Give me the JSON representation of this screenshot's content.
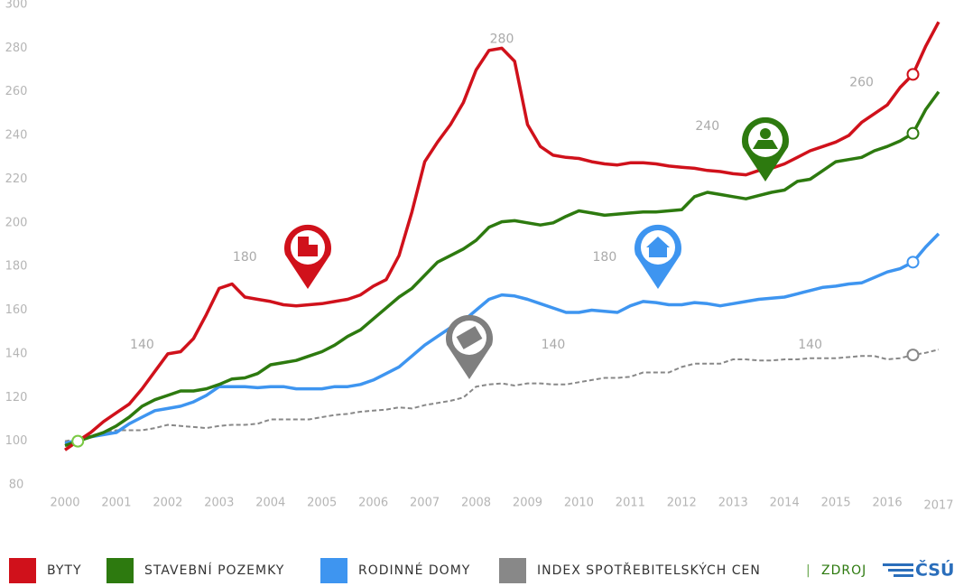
{
  "chart_data": {
    "type": "line",
    "x": [
      2000,
      2000.25,
      2000.5,
      2000.75,
      2001,
      2001.25,
      2001.5,
      2001.75,
      2002,
      2002.25,
      2002.5,
      2002.75,
      2003,
      2003.25,
      2003.5,
      2003.75,
      2004,
      2004.25,
      2004.5,
      2004.75,
      2005,
      2005.25,
      2005.5,
      2005.75,
      2006,
      2006.25,
      2006.5,
      2006.75,
      2007,
      2007.25,
      2007.5,
      2007.75,
      2008,
      2008.25,
      2008.5,
      2008.75,
      2009,
      2009.25,
      2009.5,
      2009.75,
      2010,
      2010.25,
      2010.5,
      2010.75,
      2011,
      2011.25,
      2011.5,
      2011.75,
      2012,
      2012.25,
      2012.5,
      2012.75,
      2013,
      2013.25,
      2013.5,
      2013.75,
      2014,
      2014.25,
      2014.5,
      2014.75,
      2015,
      2015.25,
      2015.5,
      2015.75,
      2016,
      2016.25,
      2016.5,
      2016.75,
      2017
    ],
    "series": [
      {
        "name": "BYTY",
        "color": "#d0111b",
        "dashed": false,
        "values": [
          96,
          100,
          104,
          109,
          113,
          117,
          124,
          132,
          140,
          141,
          147,
          158,
          170,
          172,
          166,
          165,
          164,
          162.5,
          162,
          162.5,
          163,
          164,
          165,
          167,
          171,
          174,
          185,
          205,
          228,
          237,
          245,
          255,
          270,
          279,
          280,
          274,
          245,
          235,
          231,
          230,
          229.5,
          228,
          227,
          226.5,
          227.5,
          227.5,
          227,
          226,
          225.5,
          225,
          224,
          223.5,
          222.5,
          222,
          224,
          225,
          227,
          230,
          233,
          235,
          237,
          240,
          246,
          250,
          254,
          262,
          268,
          281,
          292
        ]
      },
      {
        "name": "STAVEBNÍ POZEMKY",
        "color": "#2d7a0f",
        "dashed": false,
        "values": [
          98,
          100,
          102,
          104,
          107,
          111,
          116,
          119,
          121,
          123,
          123,
          124,
          126,
          128.5,
          129,
          131,
          135,
          136,
          137,
          139,
          141,
          144,
          148,
          151,
          156,
          161,
          166,
          170,
          176,
          182,
          185,
          188,
          192,
          198,
          200.5,
          201,
          200,
          199,
          200,
          203,
          205.5,
          204.5,
          203.5,
          204,
          204.5,
          205,
          205,
          205.5,
          206,
          212,
          214,
          213,
          212,
          211,
          212.5,
          214,
          215,
          219,
          220,
          224,
          228,
          229,
          230,
          233,
          235,
          237.5,
          241,
          252,
          260
        ]
      },
      {
        "name": "RODINNÉ DOMY",
        "color": "#3e95f0",
        "dashed": false,
        "values": [
          99,
          100.5,
          102,
          103,
          104,
          108,
          111,
          114,
          115,
          116,
          118,
          121,
          125,
          125,
          125,
          124.5,
          125,
          125,
          124,
          124,
          124,
          125,
          125,
          126,
          128,
          131,
          134,
          139,
          144,
          148,
          152,
          155,
          160,
          165,
          167,
          166.5,
          165,
          163,
          161,
          159,
          159,
          160,
          159.5,
          159,
          162,
          164,
          163.5,
          162.5,
          162.5,
          163.5,
          163,
          162,
          163,
          164,
          165,
          165.5,
          166,
          167.5,
          169,
          170.5,
          171,
          172,
          172.5,
          175,
          177.5,
          179,
          182,
          189,
          195
        ]
      },
      {
        "name": "INDEX SPOTŘEBITELSKÝCH CEN",
        "color": "#888888",
        "dashed": true,
        "values": [
          100,
          101,
          102.5,
          104,
          105,
          105,
          105,
          106,
          107.5,
          107,
          106.5,
          106,
          107,
          107.5,
          107.5,
          108,
          110,
          110,
          110,
          110,
          111,
          112,
          112.5,
          113.5,
          114,
          114.5,
          115.5,
          115,
          116.5,
          117.5,
          118.5,
          120,
          125,
          126,
          126.5,
          125.5,
          126.5,
          126.5,
          126,
          126,
          127,
          128,
          129,
          129,
          129.5,
          131.5,
          131.5,
          131.5,
          134,
          135.5,
          135.5,
          135.5,
          137.5,
          137.5,
          137,
          137,
          137.5,
          137.5,
          138,
          138,
          138,
          138.5,
          139,
          139,
          137.5,
          138,
          139.5,
          140.5,
          142
        ]
      }
    ],
    "xlim": [
      2000,
      2017
    ],
    "xticks": [
      2000,
      2001,
      2002,
      2003,
      2004,
      2005,
      2006,
      2007,
      2008,
      2009,
      2010,
      2011,
      2012,
      2013,
      2014,
      2015,
      2016,
      2017
    ],
    "ylim": [
      80,
      300
    ],
    "yticks": [
      80,
      100,
      120,
      140,
      160,
      180,
      200,
      220,
      240,
      260,
      280,
      300
    ],
    "grid": false,
    "annotations": [
      {
        "value": 140,
        "x": 2001.5
      },
      {
        "value": 180,
        "x": 2003.5
      },
      {
        "value": 280,
        "x": 2008.5
      },
      {
        "value": 140,
        "x": 2009.5
      },
      {
        "value": 180,
        "x": 2010.5
      },
      {
        "value": 240,
        "x": 2012.5
      },
      {
        "value": 140,
        "x": 2014.5
      },
      {
        "value": 260,
        "x": 2015.5
      }
    ],
    "source_label": "ZDROJ",
    "source_logo": "ČSÚ"
  }
}
